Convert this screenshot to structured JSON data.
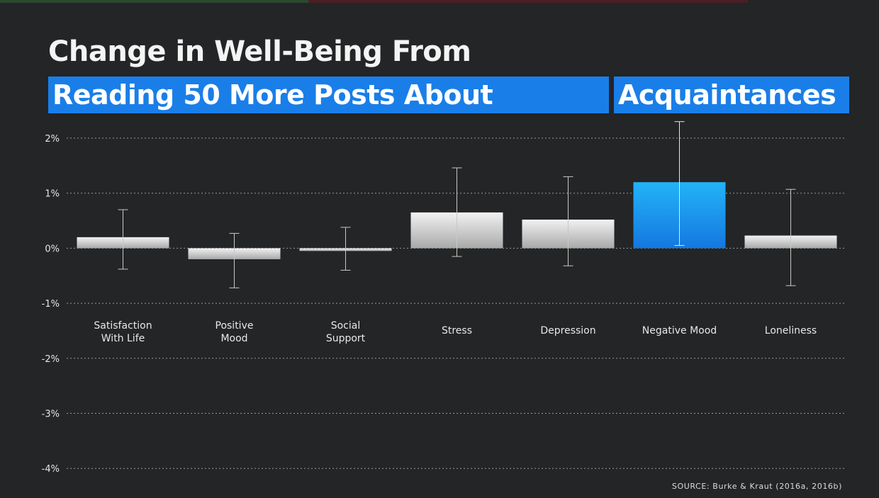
{
  "title_line1": "Change in Well-Being From",
  "title_highlight_1": "Reading 50 More Posts About",
  "title_highlight_2": "Acquaintances",
  "source": "SOURCE: Burke & Kraut (2016a, 2016b)",
  "colors": {
    "background": "#232526",
    "highlight": "#1a7ee8",
    "bar_default": "#d8d8d8",
    "bar_highlight": "#1ea6f0",
    "gridline": "#9a9a9a"
  },
  "chart_data": {
    "type": "bar",
    "categories": [
      [
        "Satisfaction",
        "With Life"
      ],
      [
        "Positive",
        "Mood"
      ],
      [
        "Social",
        "Support"
      ],
      [
        "Stress"
      ],
      [
        "Depression"
      ],
      [
        "Negative Mood"
      ],
      [
        "Loneliness"
      ]
    ],
    "values": [
      0.2,
      -0.2,
      -0.05,
      0.65,
      0.52,
      1.2,
      0.23
    ],
    "error_low": [
      -0.38,
      -0.72,
      -0.4,
      -0.15,
      -0.32,
      0.05,
      -0.68
    ],
    "error_high": [
      0.7,
      0.27,
      0.38,
      1.46,
      1.3,
      2.3,
      1.07
    ],
    "highlight_index": 5,
    "ylim": [
      -4,
      2
    ],
    "yticks": [
      2,
      1,
      0,
      -1,
      -2,
      -3,
      -4
    ],
    "ytick_labels": [
      "2%",
      "1%",
      "0%",
      "-1%",
      "-2%",
      "-3%",
      "-4%"
    ],
    "grid": true,
    "grid_style": "dotted",
    "xlabel": "",
    "ylabel": ""
  }
}
